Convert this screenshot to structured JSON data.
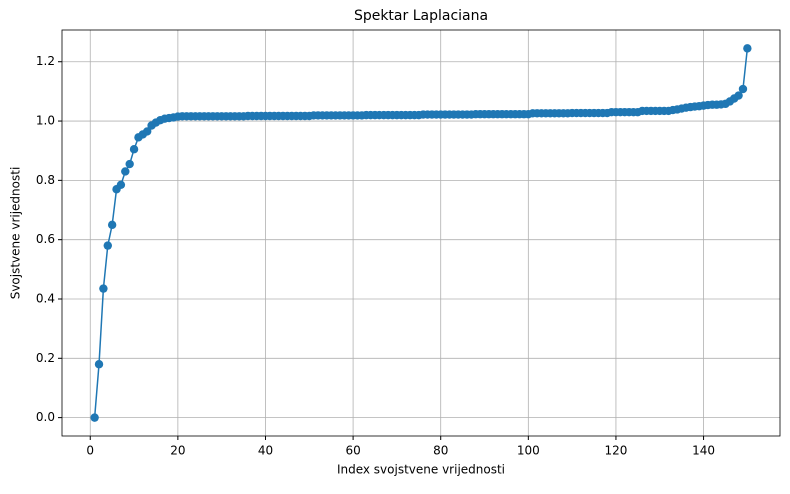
{
  "chart_data": {
    "type": "line",
    "title": "Spektar Laplaciana",
    "x_label": "Index svojstvene vrijednosti",
    "y_label": "Svojstvene vrijednosti",
    "x": [
      1,
      2,
      3,
      4,
      5,
      6,
      7,
      8,
      9,
      10,
      11,
      12,
      13,
      14,
      15,
      16,
      17,
      18,
      19,
      20,
      21,
      22,
      23,
      24,
      25,
      26,
      27,
      28,
      29,
      30,
      31,
      32,
      33,
      34,
      35,
      36,
      37,
      38,
      39,
      40,
      41,
      42,
      43,
      44,
      45,
      46,
      47,
      48,
      49,
      50,
      51,
      52,
      53,
      54,
      55,
      56,
      57,
      58,
      59,
      60,
      61,
      62,
      63,
      64,
      65,
      66,
      67,
      68,
      69,
      70,
      71,
      72,
      73,
      74,
      75,
      76,
      77,
      78,
      79,
      80,
      81,
      82,
      83,
      84,
      85,
      86,
      87,
      88,
      89,
      90,
      91,
      92,
      93,
      94,
      95,
      96,
      97,
      98,
      99,
      100,
      101,
      102,
      103,
      104,
      105,
      106,
      107,
      108,
      109,
      110,
      111,
      112,
      113,
      114,
      115,
      116,
      117,
      118,
      119,
      120,
      121,
      122,
      123,
      124,
      125,
      126,
      127,
      128,
      129,
      130,
      131,
      132,
      133,
      134,
      135,
      136,
      137,
      138,
      139,
      140,
      141,
      142,
      143,
      144,
      145,
      146,
      147,
      148,
      149,
      150
    ],
    "series": [
      {
        "color": "#1f77b4",
        "values": [
          0,
          0.18,
          0.435,
          0.58,
          0.65,
          0.77,
          0.785,
          0.83,
          0.855,
          0.905,
          0.945,
          0.955,
          0.965,
          0.985,
          0.995,
          1.003,
          1.008,
          1.01,
          1.012,
          1.015,
          1.016,
          1.016,
          1.016,
          1.016,
          1.016,
          1.016,
          1.016,
          1.016,
          1.016,
          1.016,
          1.016,
          1.016,
          1.016,
          1.016,
          1.016,
          1.017,
          1.017,
          1.017,
          1.017,
          1.017,
          1.017,
          1.017,
          1.017,
          1.017,
          1.017,
          1.017,
          1.017,
          1.017,
          1.017,
          1.017,
          1.019,
          1.019,
          1.019,
          1.019,
          1.019,
          1.019,
          1.019,
          1.019,
          1.019,
          1.019,
          1.019,
          1.019,
          1.02,
          1.02,
          1.02,
          1.02,
          1.02,
          1.02,
          1.02,
          1.02,
          1.02,
          1.02,
          1.02,
          1.02,
          1.02,
          1.022,
          1.022,
          1.022,
          1.022,
          1.022,
          1.022,
          1.022,
          1.022,
          1.022,
          1.022,
          1.022,
          1.022,
          1.023,
          1.023,
          1.023,
          1.023,
          1.023,
          1.023,
          1.023,
          1.023,
          1.023,
          1.023,
          1.023,
          1.023,
          1.023,
          1.026,
          1.026,
          1.026,
          1.026,
          1.026,
          1.026,
          1.026,
          1.026,
          1.026,
          1.027,
          1.027,
          1.027,
          1.027,
          1.027,
          1.027,
          1.027,
          1.027,
          1.027,
          1.03,
          1.03,
          1.03,
          1.03,
          1.03,
          1.03,
          1.03,
          1.034,
          1.034,
          1.034,
          1.034,
          1.034,
          1.034,
          1.034,
          1.037,
          1.039,
          1.042,
          1.045,
          1.047,
          1.049,
          1.05,
          1.052,
          1.054,
          1.055,
          1.055,
          1.056,
          1.058,
          1.066,
          1.076,
          1.086,
          1.108,
          1.245
        ]
      }
    ],
    "xlim": [
      -6.45,
      157.45
    ],
    "xticks": [
      0,
      20,
      40,
      60,
      80,
      100,
      120,
      140
    ],
    "ylim": [
      -0.062,
      1.307
    ],
    "yticks": [
      {
        "value": 0,
        "label": "0.0"
      },
      {
        "value": 0.2,
        "label": "0.2"
      },
      {
        "value": 0.4,
        "label": "0.4"
      },
      {
        "value": 0.6,
        "label": "0.6"
      },
      {
        "value": 0.8,
        "label": "0.8"
      },
      {
        "value": 1,
        "label": "1.0"
      },
      {
        "value": 1.2,
        "label": "1.2"
      }
    ],
    "grid": true
  }
}
